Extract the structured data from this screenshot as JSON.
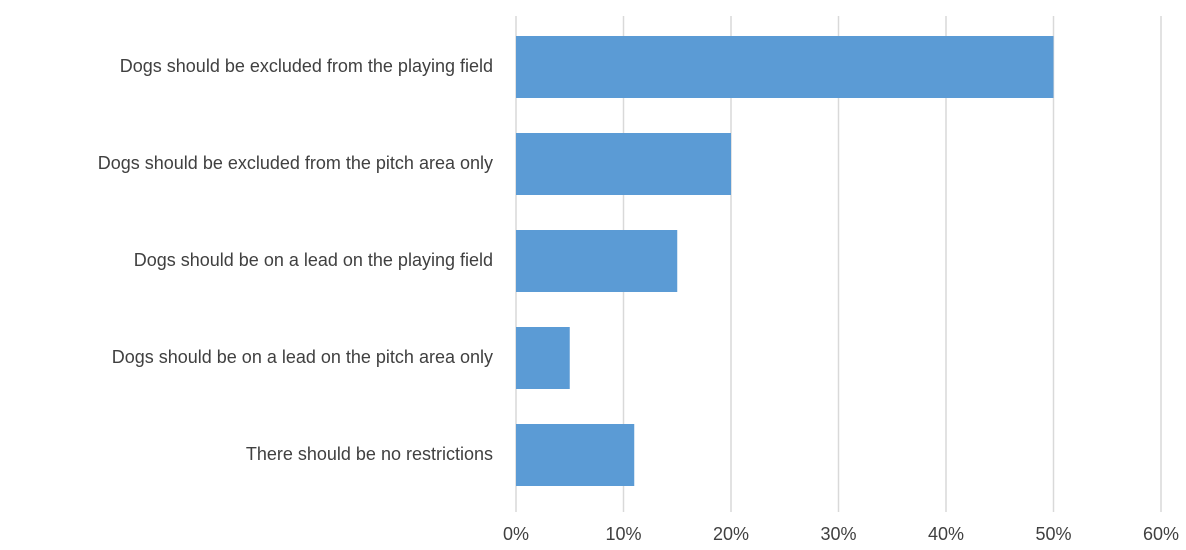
{
  "chart_data": {
    "type": "bar",
    "orientation": "horizontal",
    "categories": [
      "Dogs should be excluded from the playing field",
      "Dogs should be excluded from the pitch area only",
      "Dogs should be on a lead on the playing field",
      "Dogs should be on a lead on the pitch area only",
      "There should be no restrictions"
    ],
    "values": [
      50,
      20,
      15,
      5,
      11
    ],
    "xlim": [
      0,
      60
    ],
    "x_ticks": [
      0,
      10,
      20,
      30,
      40,
      50,
      60
    ],
    "x_tick_labels": [
      "0%",
      "10%",
      "20%",
      "30%",
      "40%",
      "50%",
      "60%"
    ],
    "grid": "vertical",
    "legend": "none",
    "bar_color": "#5b9bd5"
  }
}
